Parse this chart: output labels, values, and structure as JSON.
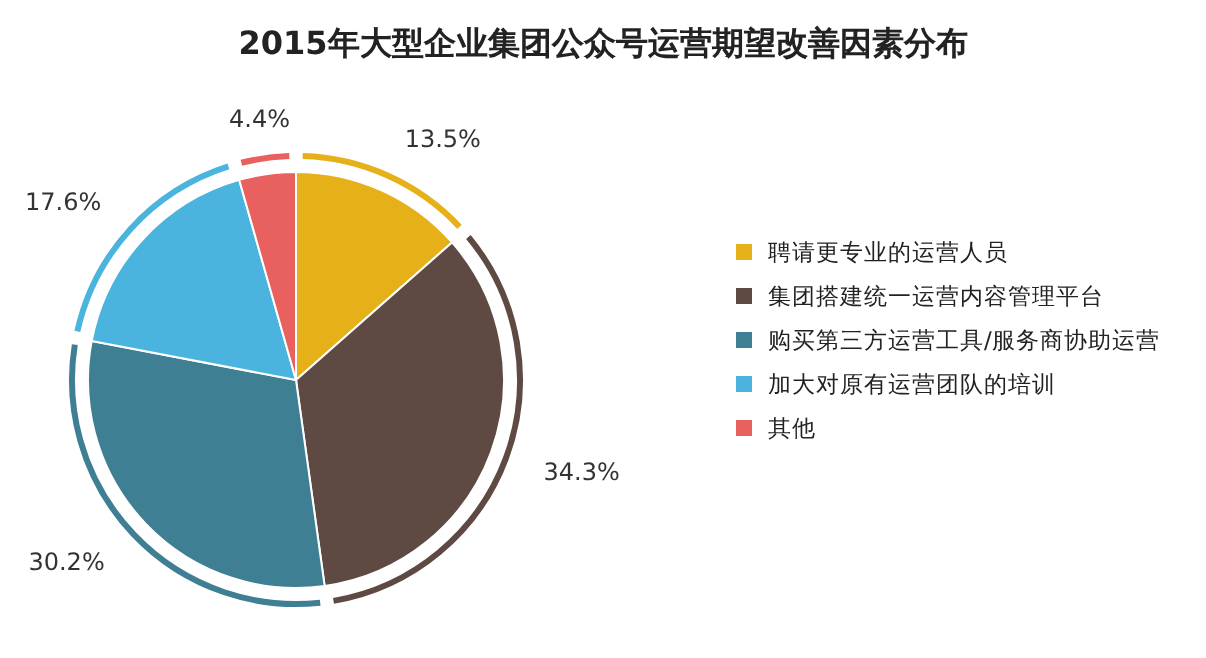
{
  "chart_data": {
    "type": "pie",
    "title": "2015年大型企业集团公众号运营期望改善因素分布",
    "categories": [
      "聘请更专业的运营人员",
      "集团搭建统一运营内容管理平台",
      "购买第三方运营工具/服务商协助运营",
      "加大对原有运营团队的培训",
      "其他"
    ],
    "values": [
      13.5,
      34.3,
      30.2,
      17.6,
      4.4
    ],
    "value_labels": [
      "13.5%",
      "34.3%",
      "30.2%",
      "17.6%",
      "4.4%"
    ],
    "colors": [
      "#e6b018",
      "#5e4a42",
      "#3f7f93",
      "#4ab4de",
      "#e8615f"
    ],
    "legend": "right"
  }
}
